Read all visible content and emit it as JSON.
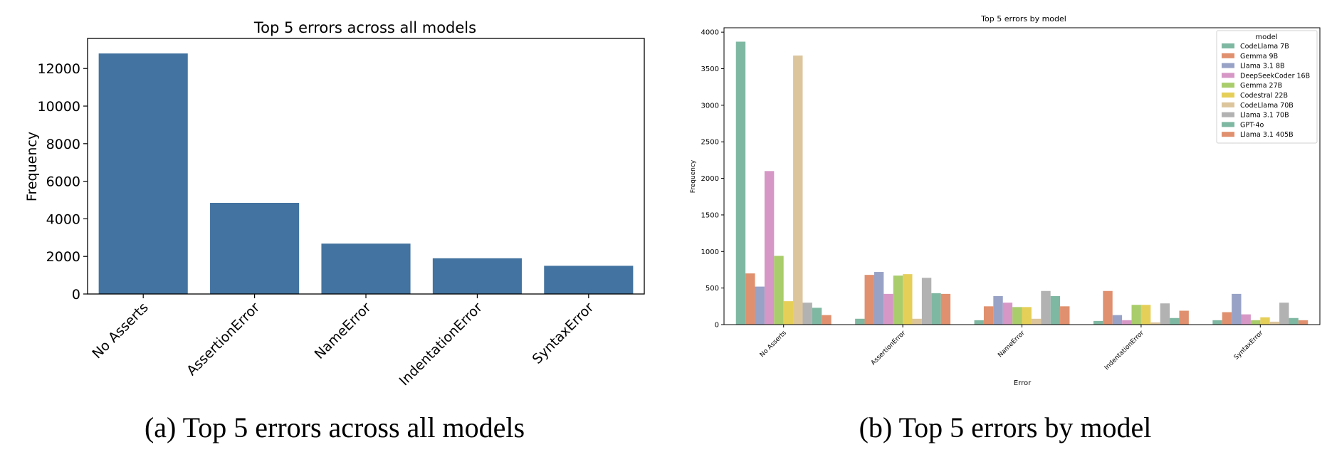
{
  "chart_data": [
    {
      "type": "bar",
      "title": "Top 5 errors across all models",
      "xlabel": "",
      "ylabel": "Frequency",
      "caption": "(a) Top 5 errors across all models",
      "categories": [
        "No Asserts",
        "AssertionError",
        "NameError",
        "IndentationError",
        "SyntaxError"
      ],
      "values": [
        12800,
        4850,
        2680,
        1900,
        1500
      ],
      "ylim": [
        0,
        13600
      ],
      "yticks": [
        0,
        2000,
        4000,
        6000,
        8000,
        10000,
        12000
      ],
      "ytick_labels": [
        "0",
        "2000",
        "4000",
        "6000",
        "8000",
        "10000",
        "12000"
      ],
      "grid": false,
      "color": "#4373a0"
    },
    {
      "type": "bar",
      "title": "Top 5 errors by model",
      "xlabel": "Error",
      "ylabel": "Frequency",
      "caption": "(b) Top 5 errors by model",
      "categories": [
        "No Asserts",
        "AssertionError",
        "NameError",
        "IndentationError",
        "SyntaxError"
      ],
      "ylim": [
        0,
        4060
      ],
      "yticks": [
        0,
        500,
        1000,
        1500,
        2000,
        2500,
        3000,
        3500,
        4000
      ],
      "ytick_labels": [
        "0",
        "500",
        "1000",
        "1500",
        "2000",
        "2500",
        "3000",
        "3500",
        "4000"
      ],
      "grid": false,
      "legend": {
        "title": "model",
        "placement": "top-right"
      },
      "series": [
        {
          "name": "CodeLlama 7B",
          "color": "#7fb8a2",
          "values": [
            3870,
            80,
            60,
            50,
            60
          ]
        },
        {
          "name": "Gemma 9B",
          "color": "#e0906e",
          "values": [
            700,
            680,
            250,
            460,
            170
          ]
        },
        {
          "name": "Llama 3.1 8B",
          "color": "#98a2c6",
          "values": [
            520,
            720,
            390,
            130,
            420
          ]
        },
        {
          "name": "DeepSeekCoder 16B",
          "color": "#d697c6",
          "values": [
            2100,
            420,
            300,
            60,
            140
          ]
        },
        {
          "name": "Gemma 27B",
          "color": "#a9cd6a",
          "values": [
            940,
            670,
            240,
            270,
            60
          ]
        },
        {
          "name": "Codestral 22B",
          "color": "#e6cf59",
          "values": [
            320,
            690,
            240,
            270,
            100
          ]
        },
        {
          "name": "CodeLlama 70B",
          "color": "#dcc59d",
          "values": [
            3680,
            80,
            80,
            30,
            40
          ]
        },
        {
          "name": "Llama 3.1 70B",
          "color": "#b2b2b2",
          "values": [
            300,
            640,
            460,
            290,
            300
          ]
        },
        {
          "name": "GPT-4o",
          "color": "#7fb8a2",
          "values": [
            230,
            430,
            390,
            90,
            90
          ]
        },
        {
          "name": "Llama 3.1 405B",
          "color": "#e0906e",
          "values": [
            130,
            420,
            250,
            190,
            60
          ]
        }
      ]
    }
  ]
}
